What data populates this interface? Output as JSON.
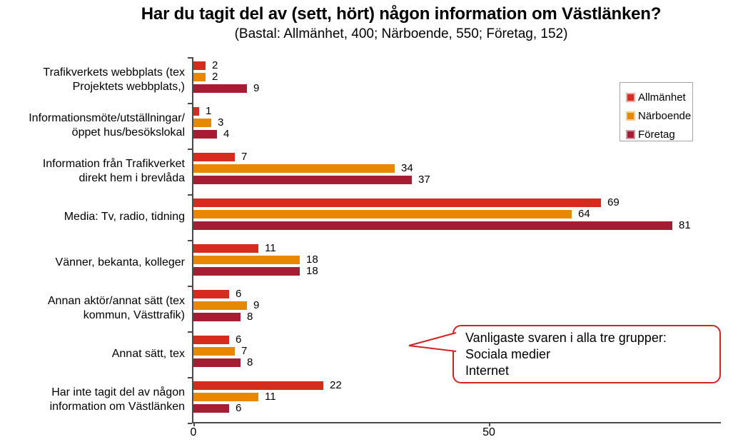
{
  "title": "Har du tagit del av (sett, hört) någon information om Västlänken?",
  "subtitle": "(Bastal: Allmänhet, 400; Närboende, 550; Företag, 152)",
  "legend": {
    "items": [
      {
        "label": "Allmänhet",
        "color": "#D52C1E",
        "tint": "#F0A8A0"
      },
      {
        "label": "Närboende",
        "color": "#E88700",
        "tint": "#F6CB8C"
      },
      {
        "label": "Företag",
        "color": "#A61C33",
        "tint": "#D497A2"
      }
    ]
  },
  "callout": {
    "lines": [
      "Vanligaste svaren i alla tre grupper:",
      "Sociala medier",
      "Internet"
    ],
    "border_color": "#CE2424"
  },
  "x_axis": {
    "tick_labels": [
      "0",
      "50"
    ]
  },
  "chart_data": {
    "type": "bar",
    "orientation": "horizontal",
    "title": "Har du tagit del av (sett, hört) någon information om Västlänken?",
    "subtitle": "(Bastal: Allmänhet, 400; Närboende, 550; Företag, 152)",
    "categories": [
      "Trafikverkets webbplats (tex\nProjektets webbplats,)",
      "Informationsmöte/utställningar/\nöppet hus/besökslokal",
      "Information från Trafikverket\ndirekt hem i brevlåda",
      "Media: Tv, radio, tidning",
      "Vänner, bekanta, kolleger",
      "Annan aktör/annat sätt (tex\nkommun, Västtrafik)",
      "Annat sätt, tex",
      "Har inte tagit del av någon\ninformation om Västlänken"
    ],
    "series": [
      {
        "name": "Allmänhet",
        "color": "#D52C1E",
        "values": [
          2,
          1,
          7,
          69,
          11,
          6,
          6,
          22
        ]
      },
      {
        "name": "Närboende",
        "color": "#E88700",
        "values": [
          2,
          3,
          34,
          64,
          18,
          9,
          7,
          11
        ]
      },
      {
        "name": "Företag",
        "color": "#A61C33",
        "values": [
          9,
          4,
          37,
          81,
          18,
          8,
          8,
          6
        ]
      }
    ],
    "xlim": [
      0,
      89
    ],
    "x_tick_values": [
      0,
      50
    ],
    "x_tick_labels": [
      "0",
      "50"
    ],
    "value_labels": true,
    "legend_position": "right",
    "grid": false,
    "annotation": "Vanligaste svaren i alla tre grupper: Sociala medier, Internet"
  }
}
